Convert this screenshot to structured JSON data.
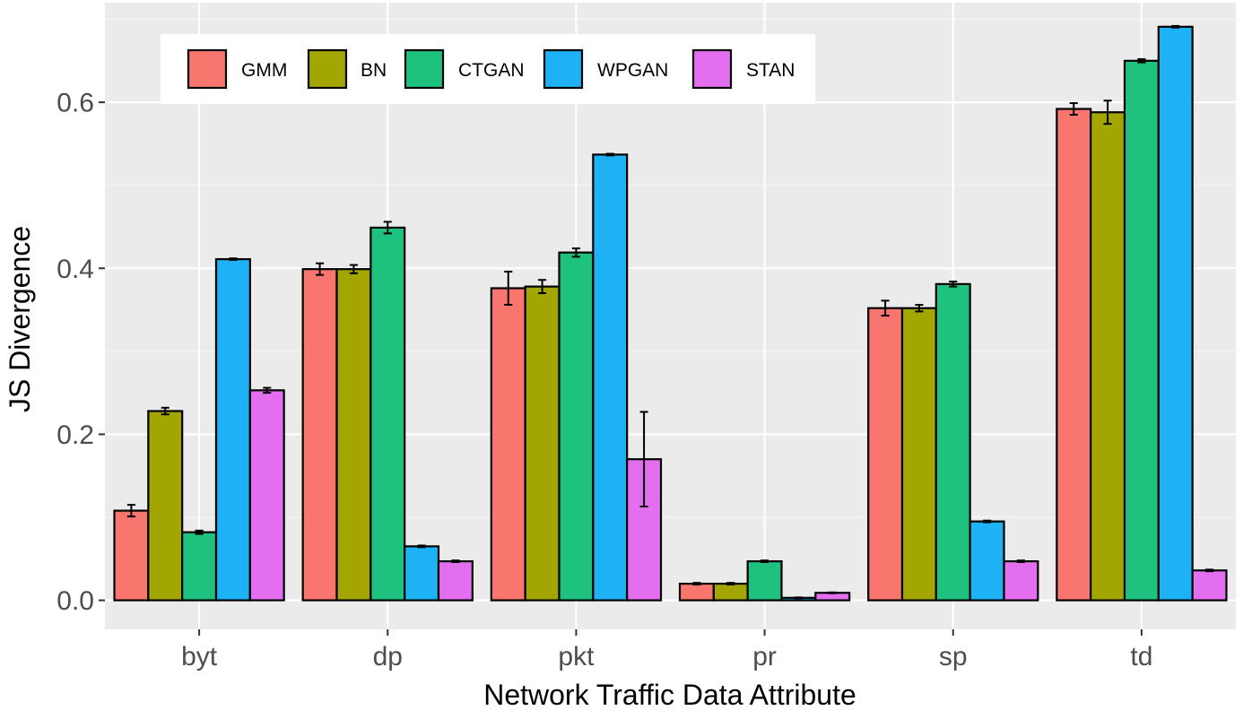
{
  "chart_data": {
    "type": "bar",
    "xlabel": "Network Traffic Data Attribute",
    "ylabel": "JS Divergence",
    "ylim": [
      -0.035,
      0.72
    ],
    "yticks": [
      0.0,
      0.2,
      0.4,
      0.6
    ],
    "ytick_labels": [
      "0.0",
      "0.2",
      "0.4",
      "0.6"
    ],
    "grid": true,
    "legend_position": "top-left",
    "categories": [
      "byt",
      "dp",
      "pkt",
      "pr",
      "sp",
      "td"
    ],
    "series": [
      {
        "name": "GMM",
        "color": "#F8766D",
        "values": [
          0.108,
          0.399,
          0.376,
          0.02,
          0.352,
          0.592
        ],
        "errors": [
          0.007,
          0.007,
          0.02,
          0.001,
          0.009,
          0.007
        ]
      },
      {
        "name": "BN",
        "color": "#A3A500",
        "values": [
          0.228,
          0.399,
          0.378,
          0.02,
          0.352,
          0.588
        ],
        "errors": [
          0.004,
          0.005,
          0.008,
          0.001,
          0.004,
          0.014
        ]
      },
      {
        "name": "CTGAN",
        "color": "#1FC17F",
        "values": [
          0.082,
          0.449,
          0.419,
          0.047,
          0.381,
          0.65
        ],
        "errors": [
          0.002,
          0.007,
          0.005,
          0.001,
          0.003,
          0.002
        ]
      },
      {
        "name": "WPGAN",
        "color": "#1EB1F3",
        "values": [
          0.411,
          0.065,
          0.537,
          0.003,
          0.095,
          0.691
        ],
        "errors": [
          0.001,
          0.001,
          0.001,
          0.0005,
          0.001,
          0.001
        ]
      },
      {
        "name": "STAN",
        "color": "#E36EF0",
        "values": [
          0.253,
          0.047,
          0.17,
          0.009,
          0.047,
          0.036
        ],
        "errors": [
          0.003,
          0.001,
          0.057,
          0.0005,
          0.001,
          0.001
        ]
      }
    ],
    "colors": {
      "panel_background": "#EBEBEB",
      "grid_major": "#FFFFFF",
      "grid_minor": "#F5F5F5",
      "bar_outline": "#000000"
    }
  }
}
